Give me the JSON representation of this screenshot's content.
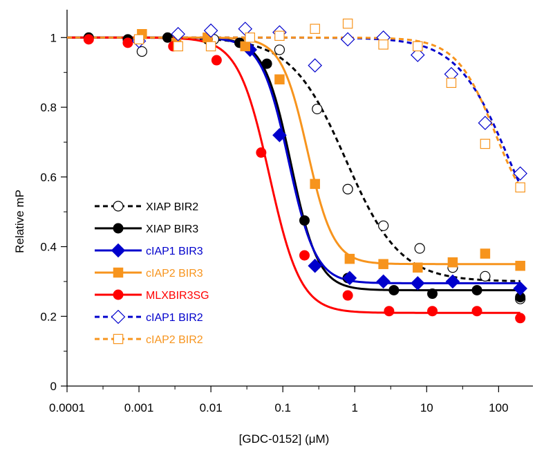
{
  "chart_data": {
    "type": "scatter",
    "title": "",
    "xlabel": "[GDC-0152] (μM)",
    "ylabel": "Relative mP",
    "xscale": "log",
    "xlim": [
      0.0001,
      300
    ],
    "ylim": [
      0,
      1.08
    ],
    "grid": false,
    "legend": "left",
    "x_ticks": [
      {
        "value": 0.0001,
        "label": "0.0001"
      },
      {
        "value": 0.001,
        "label": "0.001"
      },
      {
        "value": 0.01,
        "label": "0.01"
      },
      {
        "value": 0.1,
        "label": "0.1"
      },
      {
        "value": 1,
        "label": "1"
      },
      {
        "value": 10,
        "label": "10"
      },
      {
        "value": 100,
        "label": "100"
      }
    ],
    "y_ticks": [
      {
        "value": 0,
        "label": "0"
      },
      {
        "value": 0.2,
        "label": "0.2"
      },
      {
        "value": 0.4,
        "label": "0.4"
      },
      {
        "value": 0.6,
        "label": "0.6"
      },
      {
        "value": 0.8,
        "label": "0.8"
      },
      {
        "value": 1,
        "label": "1"
      }
    ],
    "series": [
      {
        "name": "XIAP BIR2",
        "color": "#000000",
        "marker": "circle-open",
        "line": "dashed",
        "fit": {
          "top": 1.0,
          "bottom": 0.3,
          "ec50": 0.75,
          "hill": 1.15
        },
        "x": [
          0.0011,
          0.011,
          0.09,
          0.3,
          0.8,
          2.5,
          8,
          23,
          65,
          200
        ],
        "y": [
          0.96,
          0.995,
          0.965,
          0.795,
          0.565,
          0.46,
          0.395,
          0.34,
          0.315,
          0.25
        ]
      },
      {
        "name": "XIAP BIR3",
        "color": "#000000",
        "marker": "circle-filled",
        "line": "solid",
        "fit": {
          "top": 1.0,
          "bottom": 0.275,
          "ec50": 0.13,
          "hill": 2.3
        },
        "x": [
          0.0002,
          0.0007,
          0.0025,
          0.009,
          0.025,
          0.06,
          0.2,
          0.8,
          3.5,
          12,
          50,
          200
        ],
        "y": [
          1.0,
          0.995,
          1.0,
          0.995,
          0.985,
          0.925,
          0.475,
          0.31,
          0.275,
          0.265,
          0.275,
          0.255
        ]
      },
      {
        "name": "cIAP1 BIR3",
        "color": "#0000cc",
        "marker": "diamond-filled",
        "line": "solid",
        "fit": {
          "top": 1.0,
          "bottom": 0.295,
          "ec50": 0.12,
          "hill": 2.3
        },
        "x": [
          0.035,
          0.09,
          0.28,
          0.85,
          2.5,
          7.5,
          23,
          200
        ],
        "y": [
          0.965,
          0.72,
          0.345,
          0.31,
          0.3,
          0.295,
          0.3,
          0.28
        ]
      },
      {
        "name": "cIAP2 BIR3",
        "color": "#f7941d",
        "marker": "square-filled",
        "line": "solid",
        "fit": {
          "top": 1.0,
          "bottom": 0.35,
          "ec50": 0.22,
          "hill": 2.4
        },
        "x": [
          0.0011,
          0.0033,
          0.009,
          0.03,
          0.09,
          0.28,
          0.85,
          2.5,
          7.5,
          23,
          65,
          200
        ],
        "y": [
          1.01,
          0.985,
          1.0,
          0.975,
          0.88,
          0.58,
          0.365,
          0.35,
          0.34,
          0.355,
          0.38,
          0.345
        ]
      },
      {
        "name": "MLXBIR3SG",
        "color": "#ff0000",
        "marker": "circle-filled",
        "line": "solid",
        "fit": {
          "top": 1.0,
          "bottom": 0.21,
          "ec50": 0.065,
          "hill": 2.0
        },
        "x": [
          0.0002,
          0.0007,
          0.003,
          0.012,
          0.05,
          0.2,
          0.8,
          3,
          12,
          50,
          200
        ],
        "y": [
          0.995,
          0.985,
          0.975,
          0.935,
          0.67,
          0.375,
          0.26,
          0.215,
          0.215,
          0.215,
          0.195
        ]
      },
      {
        "name": "cIAP1 BIR2",
        "color": "#0000cc",
        "marker": "diamond-open",
        "line": "dashed",
        "fit": {
          "top": 1.0,
          "bottom": 0.3,
          "ec50": 140,
          "hill": 1.2
        },
        "x": [
          0.001,
          0.0035,
          0.01,
          0.03,
          0.09,
          0.28,
          0.8,
          2.5,
          7.5,
          22,
          65,
          200
        ],
        "y": [
          0.99,
          1.01,
          1.02,
          1.025,
          1.015,
          0.92,
          0.995,
          1.0,
          0.95,
          0.895,
          0.755,
          0.61
        ]
      },
      {
        "name": "cIAP2 BIR2",
        "color": "#f7941d",
        "marker": "square-open",
        "line": "dashed",
        "fit": {
          "top": 1.0,
          "bottom": 0.45,
          "ec50": 90,
          "hill": 1.6
        },
        "x": [
          0.001,
          0.0035,
          0.01,
          0.035,
          0.09,
          0.28,
          0.8,
          2.5,
          7.5,
          22,
          65,
          200
        ],
        "y": [
          0.995,
          0.975,
          0.975,
          1.0,
          1.005,
          1.025,
          1.04,
          0.98,
          0.975,
          0.87,
          0.695,
          0.57
        ]
      }
    ]
  }
}
